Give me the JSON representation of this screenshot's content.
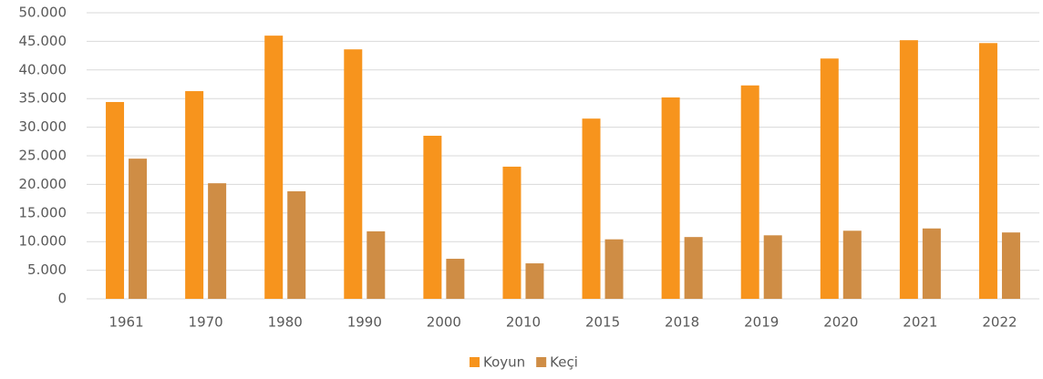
{
  "chart_data": {
    "type": "bar",
    "categories": [
      "1961",
      "1970",
      "1980",
      "1990",
      "2000",
      "2010",
      "2015",
      "2018",
      "2019",
      "2020",
      "2021",
      "2022"
    ],
    "series": [
      {
        "name": "Koyun",
        "color": "#f7941d",
        "values": [
          34400,
          36300,
          46000,
          43600,
          28500,
          23100,
          31500,
          35200,
          37300,
          42000,
          45200,
          44700
        ]
      },
      {
        "name": "Keçi",
        "color": "#cf8d45",
        "values": [
          24500,
          20200,
          18800,
          11800,
          7000,
          6200,
          10400,
          10800,
          11100,
          11900,
          12300,
          11600
        ]
      }
    ],
    "ylim": [
      0,
      50000
    ],
    "yticks": [
      0,
      {
        "value": 5000,
        "label": "5.000"
      },
      {
        "value": 10000,
        "label": "10.000"
      },
      {
        "value": 15000,
        "label": "15.000"
      },
      {
        "value": 20000,
        "label": "20.000"
      },
      {
        "value": 25000,
        "label": "25.000"
      },
      {
        "value": 30000,
        "label": "30.000"
      },
      {
        "value": 35000,
        "label": "35.000"
      },
      {
        "value": 40000,
        "label": "40.000"
      },
      {
        "value": 45000,
        "label": "45.000"
      },
      {
        "value": 50000,
        "label": "50.000"
      }
    ],
    "grid": true,
    "legend": "bottom"
  }
}
